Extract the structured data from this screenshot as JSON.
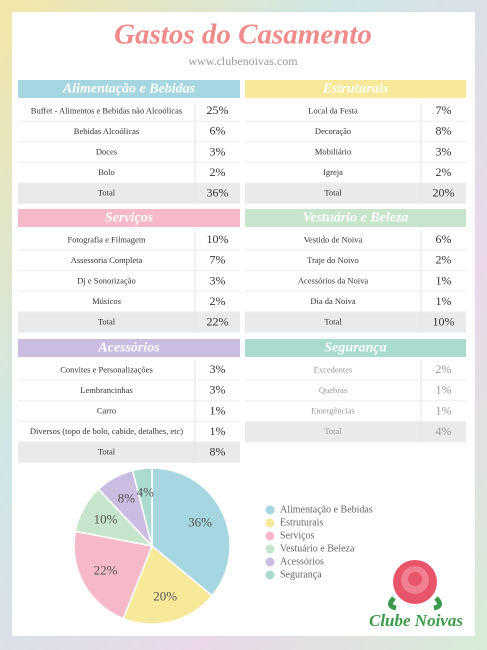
{
  "header": {
    "title": "Gastos do Casamento",
    "website": "www.clubenoivas.com"
  },
  "sections": [
    {
      "title": "Alimentação e Bebidas",
      "color": "#a6d6df",
      "rows": [
        [
          "Buffet - Alimentos e Bebidas não Alcoólicas",
          "25%"
        ],
        [
          "Bebidas Alcoólicas",
          "6%"
        ],
        [
          "Doces",
          "3%"
        ],
        [
          "Bolo",
          "2%"
        ]
      ],
      "total": [
        "Total",
        "36%"
      ]
    },
    {
      "title": "Estruturais",
      "color": "#f6e99a",
      "rows": [
        [
          "Local da Festa",
          "7%"
        ],
        [
          "Decoração",
          "8%"
        ],
        [
          "Mobiliário",
          "3%"
        ],
        [
          "Igreja",
          "2%"
        ]
      ],
      "total": [
        "Total",
        "20%"
      ]
    },
    {
      "title": "Serviços",
      "color": "#f5b9c9",
      "rows": [
        [
          "Fotografia e Filmagem",
          "10%"
        ],
        [
          "Assessoria Completa",
          "7%"
        ],
        [
          "Dj e Sonorização",
          "3%"
        ],
        [
          "Músicos",
          "2%"
        ]
      ],
      "total": [
        "Total",
        "22%"
      ]
    },
    {
      "title": "Vestuário e Beleza",
      "color": "#c6e5cc",
      "rows": [
        [
          "Vestido de Noiva",
          "6%"
        ],
        [
          "Traje do Noivo",
          "2%"
        ],
        [
          "Acessórios da Noiva",
          "1%"
        ],
        [
          "Dia da Noiva",
          "1%"
        ]
      ],
      "total": [
        "Total",
        "10%"
      ]
    },
    {
      "title": "Acessórios",
      "color": "#cbbde1",
      "rows": [
        [
          "Convites e Personalizações",
          "3%"
        ],
        [
          "Lembrancinhas",
          "3%"
        ],
        [
          "Carro",
          "1%"
        ],
        [
          "Diversos (topo de bolo, cabide, detalhes, etc)",
          "1%"
        ]
      ],
      "total": [
        "Total",
        "8%"
      ]
    },
    {
      "title": "Segurança",
      "color": "#a9dccf",
      "muted": true,
      "rows": [
        [
          "Excedentes",
          "2%"
        ],
        [
          "Quebras",
          "1%"
        ],
        [
          "Emergências",
          "1%"
        ]
      ],
      "total": [
        "Total",
        "4%"
      ]
    }
  ],
  "chart_data": {
    "type": "pie",
    "categories": [
      "Alimentação e Bebidas",
      "Estruturais",
      "Serviços",
      "Vestuário e Beleza",
      "Acessórios",
      "Segurança"
    ],
    "values": [
      36,
      20,
      22,
      10,
      8,
      4
    ],
    "value_labels": [
      "36%",
      "20%",
      "22%",
      "10%",
      "8%",
      "4%"
    ],
    "colors": [
      "#a6d6df",
      "#f6e99a",
      "#f5b9c9",
      "#c6e5cc",
      "#cbbde1",
      "#a9dccf"
    ]
  },
  "logo": {
    "text": "Clube Noivas"
  }
}
